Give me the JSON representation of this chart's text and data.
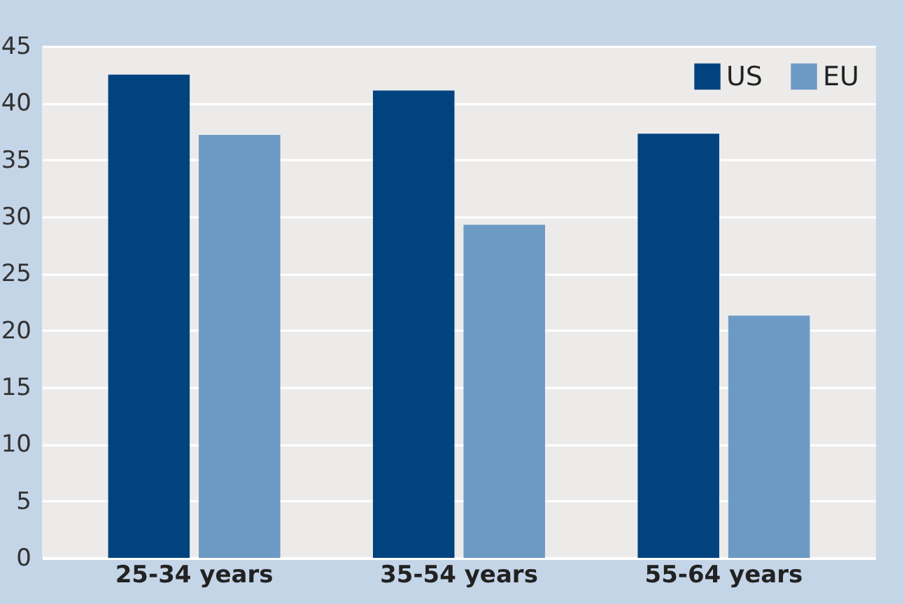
{
  "chart_data": {
    "type": "bar",
    "categories": [
      "25-34 years",
      "35-54 years",
      "55-64 years"
    ],
    "series": [
      {
        "name": "US",
        "color": "#00437f",
        "values": [
          42.5,
          41.1,
          37.3
        ]
      },
      {
        "name": "EU",
        "color": "#6c9ac4",
        "values": [
          37.2,
          29.3,
          21.3
        ]
      }
    ],
    "ylim": [
      0,
      45
    ],
    "yticks": [
      0,
      5,
      10,
      15,
      20,
      25,
      30,
      35,
      40,
      45
    ],
    "grid": "y",
    "legend": "top right"
  }
}
